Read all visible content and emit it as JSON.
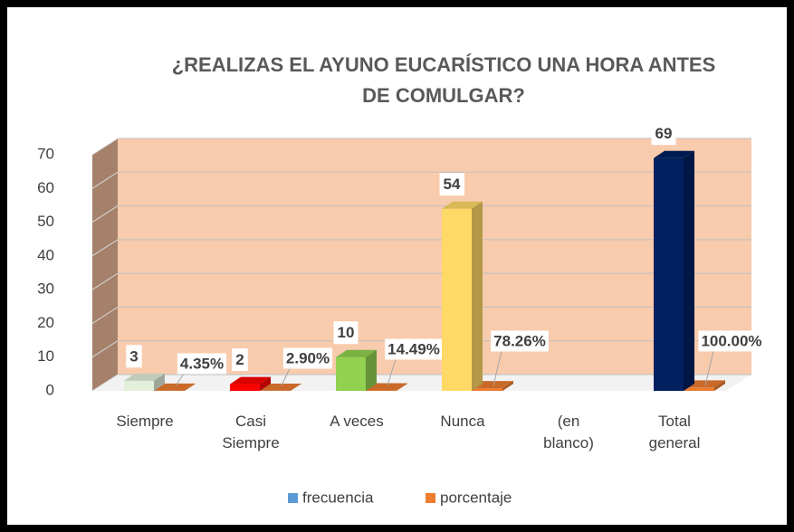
{
  "chart_data": {
    "type": "bar3d",
    "title": "¿REALIZAS EL AYUNO EUCARÍSTICO UNA HORA ANTES\nDE COMULGAR?",
    "categories": [
      "Siempre",
      "Casi Siempre",
      "A veces",
      "Nunca",
      "(en blanco)",
      "Total general"
    ],
    "series": [
      {
        "name": "frecuencia",
        "color": "#5b9bd5",
        "colors": [
          "#e2efda",
          "#ff0000",
          "#92d050",
          "#ffd966",
          null,
          "#002060"
        ],
        "values": [
          3,
          2,
          10,
          54,
          null,
          69
        ]
      },
      {
        "name": "porcentaje",
        "color": "#ed7d31",
        "values": [
          0.0435,
          0.029,
          0.1449,
          0.7826,
          null,
          1
        ],
        "value_labels": [
          "4.35%",
          "2.90%",
          "14.49%",
          "78.26%",
          null,
          "100.00%"
        ]
      }
    ],
    "ylim": [
      0,
      70
    ],
    "yticks": [
      0,
      10,
      20,
      30,
      40,
      50,
      60,
      70
    ],
    "grid": true,
    "wall_color": "#f8cbad",
    "legend": "bottom"
  }
}
